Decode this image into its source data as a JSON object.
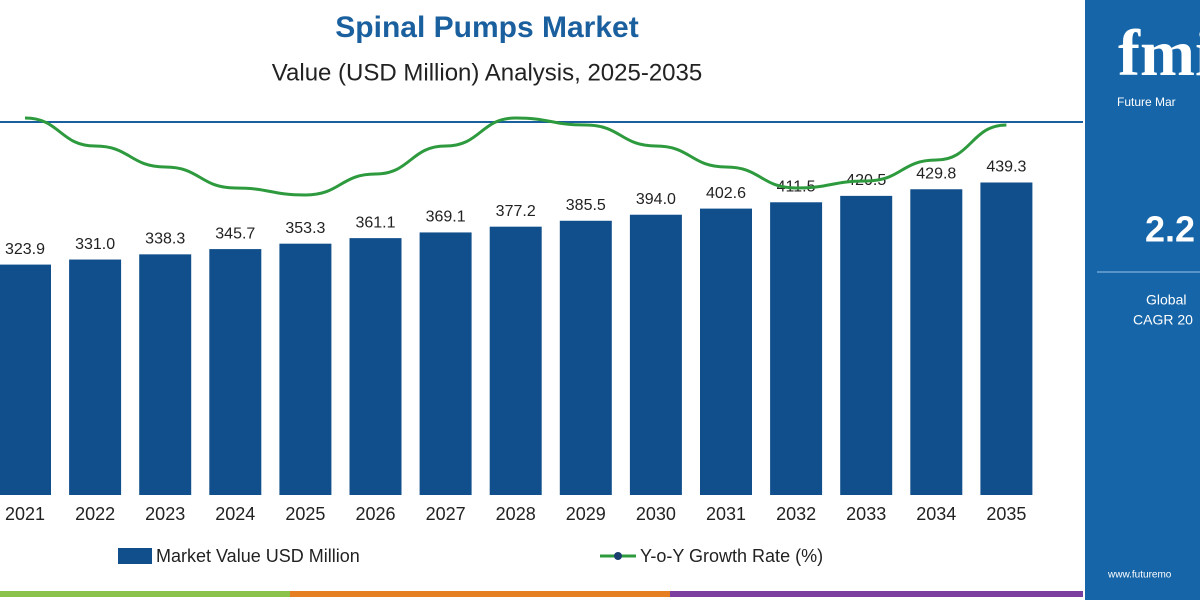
{
  "chart_data": {
    "type": "bar",
    "title": "Spinal Pumps Market",
    "subtitle": "Value (USD Million) Analysis, 2025-2035",
    "categories": [
      "2021",
      "2022",
      "2023",
      "2024",
      "2025",
      "2026",
      "2027",
      "2028",
      "2029",
      "2030",
      "2031",
      "2032",
      "2033",
      "2034",
      "2035"
    ],
    "series": [
      {
        "name": "Market Value USD Million",
        "color": "#114f8c",
        "values": [
          323.9,
          331.0,
          338.3,
          345.7,
          353.3,
          361.1,
          369.1,
          377.2,
          385.5,
          394.0,
          402.6,
          411.5,
          420.5,
          429.8,
          439.3
        ],
        "value_labels": [
          "323.9",
          "331.0",
          "338.3",
          "345.7",
          "353.3",
          "361.1",
          "369.1",
          "377.2",
          "385.5",
          "394.0",
          "402.6",
          "411.5",
          "420.5",
          "429.8",
          "439.3"
        ]
      },
      {
        "name": "Y-o-Y Growth Rate (%)",
        "color": "#2e9a3e",
        "type": "line",
        "axis": "y2",
        "values": [
          2.26,
          2.22,
          2.19,
          2.16,
          2.15,
          2.18,
          2.22,
          2.26,
          2.25,
          2.22,
          2.19,
          2.16,
          2.17,
          2.2,
          2.25
        ]
      }
    ],
    "ylim": [
      0,
      440
    ],
    "y2lim": [
      2.0,
      2.4
    ],
    "side_panel": {
      "brand": "Future Mar",
      "cagr": "2.2",
      "label1": "Global",
      "label2": "CAGR 20",
      "url": "www.futuremo"
    }
  }
}
